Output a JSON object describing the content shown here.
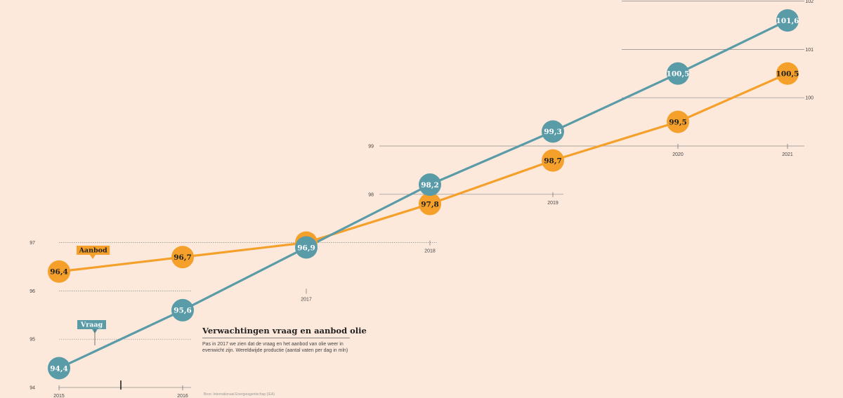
{
  "chart_data": {
    "type": "line",
    "title": "Verwachtingen vraag en aanbod olie",
    "subtitle": "Pas in 2017 we zien dat de vraag en het aanbod van olie weer in evenwicht zijn. Wereldwijde productie (aantal vaten per dag in mln)",
    "source": "Bron: Internationaal Energieagentschap (IEA)",
    "x": [
      "2015",
      "2016",
      "2017",
      "2018",
      "2019",
      "2020",
      "2021"
    ],
    "y_ticks": [
      "94",
      "95",
      "96",
      "97",
      "98",
      "99",
      "100",
      "101",
      "102"
    ],
    "ylim": [
      94,
      102
    ],
    "series": [
      {
        "name": "Aanbod",
        "color": "#f5a02a",
        "values": [
          96.4,
          96.7,
          97.0,
          97.8,
          98.7,
          99.5,
          100.5
        ],
        "labels": [
          "96,4",
          "96,7",
          "",
          "97,8",
          "98,7",
          "99,5",
          "100,5"
        ]
      },
      {
        "name": "Vraag",
        "color": "#5a9ba8",
        "values": [
          94.4,
          95.6,
          96.9,
          98.2,
          99.3,
          100.5,
          101.6
        ],
        "labels": [
          "94,4",
          "95,6",
          "96,9",
          "98,2",
          "99,3",
          "100,5",
          "101,6"
        ]
      }
    ]
  }
}
